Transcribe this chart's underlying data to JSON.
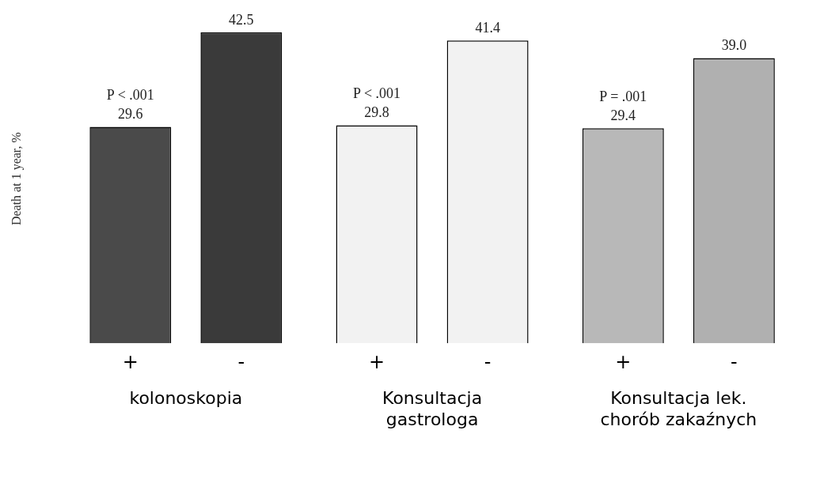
{
  "chart_data": {
    "type": "bar",
    "ylabel": "Death at 1 year, %",
    "categories": [
      "kolonoskopia",
      "Konsultacja gastrologa",
      "Konsultacja lek. chorób zakaźnych"
    ],
    "series": [
      {
        "name": "+",
        "colors": [
          "#4a4a4a",
          "#f2f2f2",
          "#b8b8b8"
        ],
        "values": [
          29.6,
          29.8,
          29.4
        ],
        "value_labels": [
          "29.6",
          "29.8",
          "29.4"
        ]
      },
      {
        "name": "-",
        "colors": [
          "#3a3a3a",
          "#f2f2f2",
          "#b0b0b0"
        ],
        "values": [
          42.5,
          41.4,
          39.0
        ],
        "value_labels": [
          "42.5",
          "41.4",
          "39.0"
        ]
      }
    ],
    "grid": false,
    "legend": false,
    "annotations": [
      "P < .001",
      "P < .001",
      "P = .001"
    ]
  }
}
